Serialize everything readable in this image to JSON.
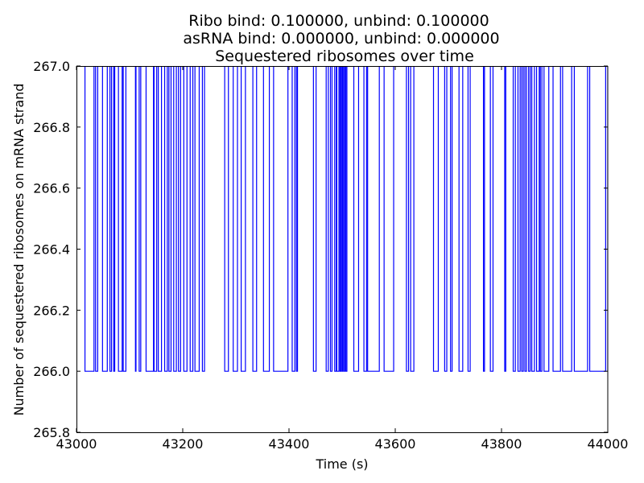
{
  "chart_data": {
    "type": "line",
    "step": true,
    "title_lines": [
      "Ribo bind: 0.100000, unbind: 0.100000",
      "asRNA bind: 0.000000, unbind: 0.000000",
      "Sequestered ribosomes over time"
    ],
    "xlabel": "Time (s)",
    "ylabel": "Number of sequestered ribosomes on mRNA strand",
    "xlim": [
      43000,
      44000
    ],
    "ylim": [
      265.8,
      267.0
    ],
    "xticks": [
      43000,
      43200,
      43400,
      43600,
      43800,
      44000
    ],
    "yticks": [
      265.8,
      266.0,
      266.2,
      266.4,
      266.6,
      266.8,
      267.0
    ],
    "xtick_labels": [
      "43000",
      "43200",
      "43400",
      "43600",
      "43800",
      "44000"
    ],
    "ytick_labels": [
      "265.8",
      "266.0",
      "266.2",
      "266.4",
      "266.6",
      "266.8",
      "267.0"
    ],
    "grid": false,
    "line_color": "#0000ff",
    "series": [
      {
        "initial_value": 267,
        "x": [
          43016,
          43033,
          43036,
          43040,
          43049,
          43058,
          43063,
          43066,
          43070,
          43072,
          43079,
          43086,
          43088,
          43093,
          43111,
          43112,
          43118,
          43121,
          43131,
          43145,
          43146,
          43151,
          43154,
          43160,
          43166,
          43171,
          43174,
          43178,
          43183,
          43188,
          43192,
          43196,
          43202,
          43208,
          43214,
          43219,
          43223,
          43231,
          43237,
          43241,
          43279,
          43286,
          43295,
          43303,
          43310,
          43318,
          43332,
          43339,
          43352,
          43363,
          43371,
          43398,
          43406,
          43411,
          43414,
          43416,
          43446,
          43451,
          43470,
          43474,
          43478,
          43481,
          43486,
          43489,
          43490,
          43494,
          43496,
          43498,
          43500,
          43501,
          43503,
          43505,
          43507,
          43509,
          43522,
          43531,
          43541,
          43546,
          43548,
          43570,
          43579,
          43597,
          43621,
          43625,
          43629,
          43635,
          43672,
          43681,
          43693,
          43697,
          43704,
          43707,
          43720,
          43727,
          43737,
          43741,
          43766,
          43768,
          43779,
          43784,
          43806,
          43808,
          43822,
          43826,
          43831,
          43835,
          43838,
          43841,
          43844,
          43847,
          43851,
          43854,
          43857,
          43862,
          43866,
          43871,
          43873,
          43876,
          43880,
          43889,
          43897,
          43911,
          43915,
          43932,
          43937,
          43962,
          43966,
          43996,
          44000
        ],
        "values": [
          266,
          267,
          266,
          267,
          266,
          267,
          266,
          267,
          266,
          267,
          266,
          267,
          266,
          267,
          266,
          267,
          266,
          267,
          266,
          267,
          266,
          267,
          266,
          267,
          266,
          267,
          266,
          267,
          266,
          267,
          266,
          267,
          266,
          267,
          266,
          267,
          266,
          267,
          266,
          267,
          266,
          267,
          266,
          267,
          266,
          267,
          266,
          267,
          266,
          267,
          266,
          267,
          266,
          267,
          266,
          267,
          266,
          267,
          266,
          267,
          266,
          267,
          266,
          267,
          266,
          267,
          266,
          267,
          266,
          267,
          266,
          267,
          266,
          267,
          266,
          267,
          266,
          267,
          266,
          267,
          266,
          267,
          266,
          267,
          266,
          267,
          266,
          267,
          266,
          267,
          266,
          267,
          266,
          267,
          266,
          267,
          266,
          267,
          266,
          267,
          266,
          267,
          266,
          267,
          266,
          267,
          266,
          267,
          266,
          267,
          266,
          267,
          266,
          267,
          266,
          267,
          266,
          267,
          266,
          267,
          266,
          267,
          266,
          267,
          266,
          267,
          266,
          267,
          266
        ]
      }
    ]
  }
}
